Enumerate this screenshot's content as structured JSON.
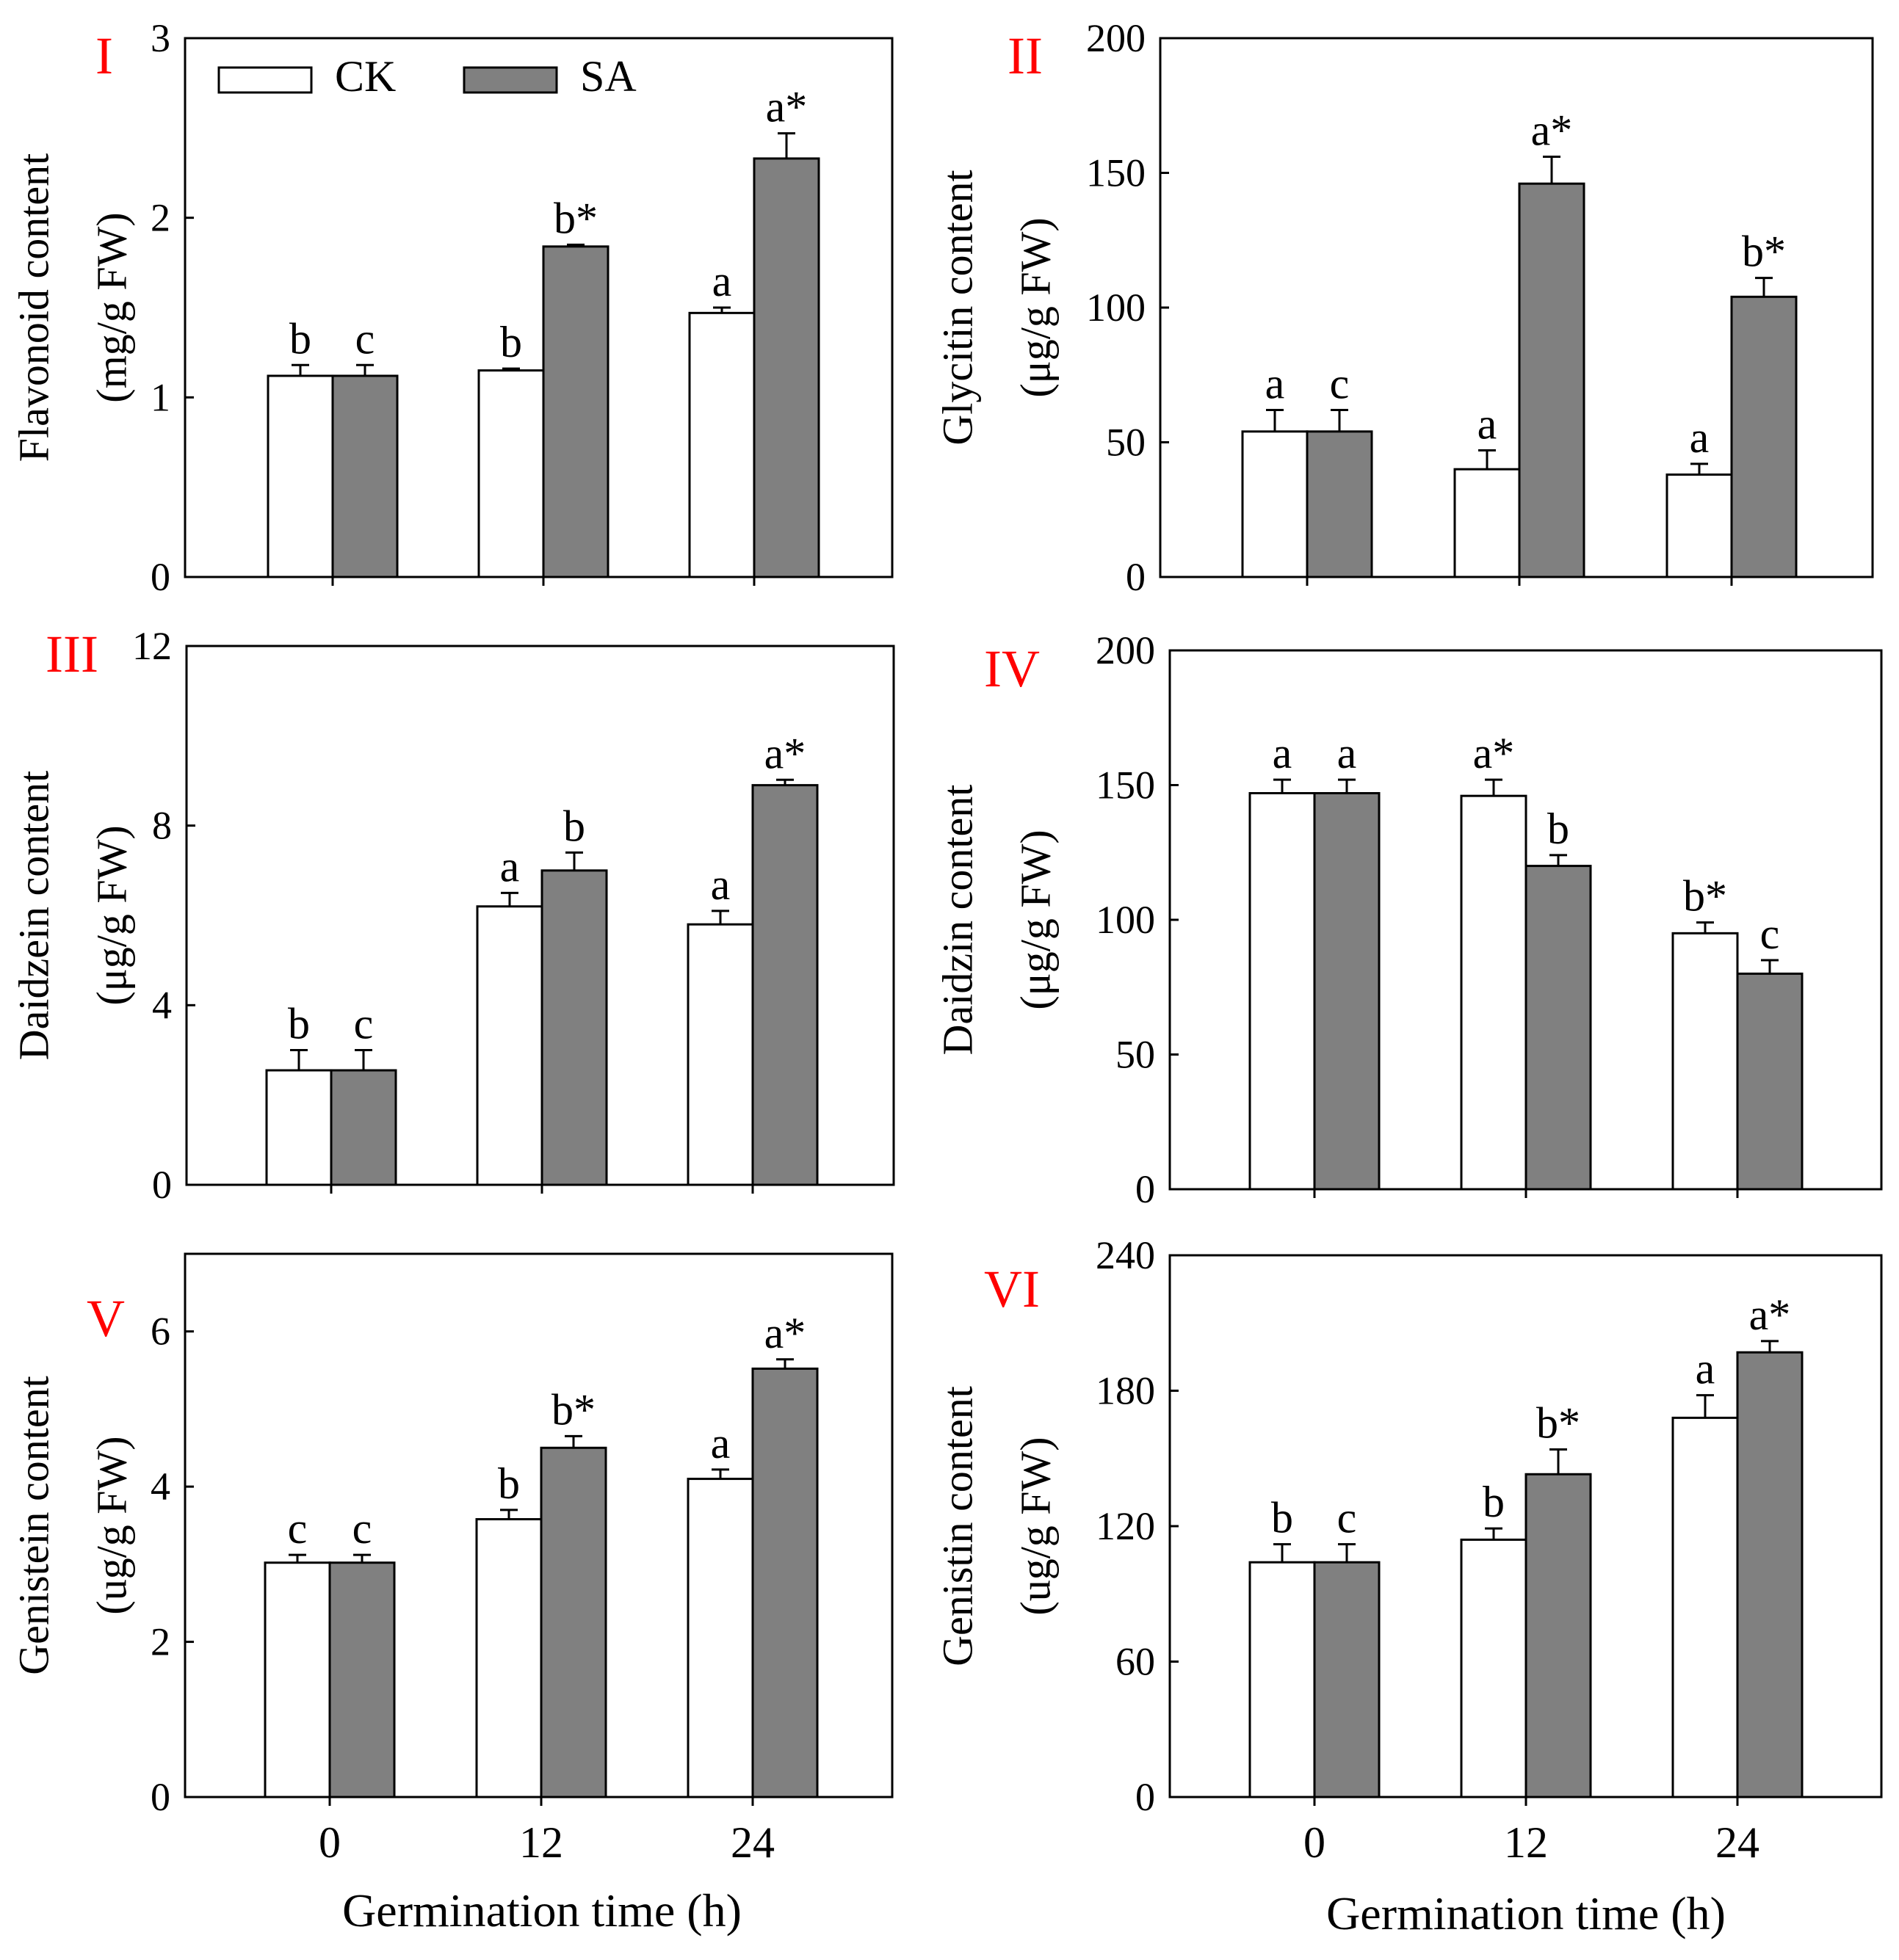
{
  "figure": {
    "shared_xlabel": "Germination time (h)",
    "colors": {
      "ck": "#ffffff",
      "sa": "#808080",
      "panel_label": "#ff0000"
    }
  },
  "legend": {
    "entries": [
      "CK",
      "SA"
    ]
  },
  "chart_data": [
    {
      "type": "bar",
      "panel_label": "I",
      "title": "",
      "ylabel_line1": "Flavonoid content",
      "ylabel_line2": "(mg/g FW)",
      "xlabel": "",
      "categories": [
        "0",
        "12",
        "24"
      ],
      "ylim": [
        0,
        3
      ],
      "yticks": [
        0,
        1,
        2,
        3
      ],
      "series": [
        {
          "name": "CK",
          "values": [
            1.12,
            1.15,
            1.47
          ],
          "errors": [
            0.06,
            0.01,
            0.03
          ],
          "letters": [
            "b",
            "b",
            "a"
          ]
        },
        {
          "name": "SA",
          "values": [
            1.12,
            1.84,
            2.33
          ],
          "errors": [
            0.06,
            0.01,
            0.14
          ],
          "letters": [
            "c",
            "b*",
            "a*"
          ]
        }
      ]
    },
    {
      "type": "bar",
      "panel_label": "II",
      "title": "",
      "ylabel_line1": "Glycitin content",
      "ylabel_line2": "(μg/g FW)",
      "xlabel": "",
      "categories": [
        "0",
        "12",
        "24"
      ],
      "ylim": [
        0,
        200
      ],
      "yticks": [
        0,
        50,
        100,
        150,
        200
      ],
      "series": [
        {
          "name": "CK",
          "values": [
            54,
            40,
            38
          ],
          "errors": [
            8,
            7,
            4
          ],
          "letters": [
            "a",
            "a",
            "a"
          ]
        },
        {
          "name": "SA",
          "values": [
            54,
            146,
            104
          ],
          "errors": [
            8,
            10,
            7
          ],
          "letters": [
            "c",
            "a*",
            "b*"
          ]
        }
      ]
    },
    {
      "type": "bar",
      "panel_label": "III",
      "title": "",
      "ylabel_line1": "Daidzein content",
      "ylabel_line2": "(μg/g FW)",
      "xlabel": "",
      "categories": [
        "0",
        "12",
        "24"
      ],
      "ylim": [
        0,
        12
      ],
      "yticks": [
        0,
        4,
        8,
        12
      ],
      "series": [
        {
          "name": "CK",
          "values": [
            2.55,
            6.2,
            5.8
          ],
          "errors": [
            0.45,
            0.3,
            0.3
          ],
          "letters": [
            "b",
            "a",
            "a"
          ]
        },
        {
          "name": "SA",
          "values": [
            2.55,
            7.0,
            8.9
          ],
          "errors": [
            0.45,
            0.4,
            0.12
          ],
          "letters": [
            "c",
            "b",
            "a*"
          ]
        }
      ]
    },
    {
      "type": "bar",
      "panel_label": "IV",
      "title": "",
      "ylabel_line1": "Daidzin content",
      "ylabel_line2": "(μg/g FW)",
      "xlabel": "",
      "categories": [
        "0",
        "12",
        "24"
      ],
      "ylim": [
        0,
        200
      ],
      "yticks": [
        0,
        50,
        100,
        150,
        200
      ],
      "series": [
        {
          "name": "CK",
          "values": [
            147,
            146,
            95
          ],
          "errors": [
            5,
            6,
            4
          ],
          "letters": [
            "a",
            "a*",
            "b*"
          ]
        },
        {
          "name": "SA",
          "values": [
            147,
            120,
            80
          ],
          "errors": [
            5,
            4,
            5
          ],
          "letters": [
            "a",
            "b",
            "c"
          ]
        }
      ]
    },
    {
      "type": "bar",
      "panel_label": "V",
      "title": "",
      "ylabel_line1": "Genistein content",
      "ylabel_line2": "(ug/g FW)",
      "xlabel": "Germination time (h)",
      "categories": [
        "0",
        "12",
        "24"
      ],
      "ylim": [
        0,
        7
      ],
      "yticks": [
        0,
        2,
        4,
        6
      ],
      "series": [
        {
          "name": "CK",
          "values": [
            3.02,
            3.58,
            4.1
          ],
          "errors": [
            0.1,
            0.12,
            0.12
          ],
          "letters": [
            "c",
            "b",
            "a"
          ]
        },
        {
          "name": "SA",
          "values": [
            3.02,
            4.5,
            5.52
          ],
          "errors": [
            0.1,
            0.15,
            0.12
          ],
          "letters": [
            "c",
            "b*",
            "a*"
          ]
        }
      ]
    },
    {
      "type": "bar",
      "panel_label": "VI",
      "title": "",
      "ylabel_line1": "Genistin content",
      "ylabel_line2": "(ug/g FW)",
      "xlabel": "Germination time (h)",
      "categories": [
        "0",
        "12",
        "24"
      ],
      "ylim": [
        0,
        240
      ],
      "yticks": [
        0,
        60,
        120,
        180,
        240
      ],
      "series": [
        {
          "name": "CK",
          "values": [
            104,
            114,
            168
          ],
          "errors": [
            8,
            5,
            10
          ],
          "letters": [
            "b",
            "b",
            "a"
          ]
        },
        {
          "name": "SA",
          "values": [
            104,
            143,
            197
          ],
          "errors": [
            8,
            11,
            5
          ],
          "letters": [
            "c",
            "b*",
            "a*"
          ]
        }
      ]
    }
  ]
}
